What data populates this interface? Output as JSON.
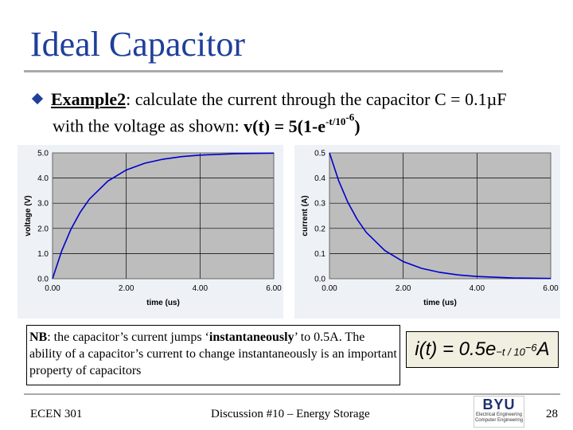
{
  "slide": {
    "title": "Ideal Capacitor",
    "bullet": {
      "label": "Example2",
      "colon": ":",
      "line1_rest": " calculate the current through the capacitor C = 0.1µF",
      "line2_prefix": "with the voltage as shown: ",
      "formula_main": "v(t) = 5(1-e",
      "formula_exp": "-t/10",
      "formula_exp2": "-6",
      "formula_close": ")"
    },
    "note": {
      "nb": "NB",
      "part1": ": the capacitor’s current jumps ‘",
      "inst": "instantaneously",
      "part2": "’ to 0.5A. The ability of a capacitor’s current to change instantaneously is an important property of capacitors"
    },
    "formula_box": {
      "lhs": "i(t) = 0.5e",
      "exp": "−t / 10",
      "exp2": "−6",
      "unit": " A"
    },
    "footer": {
      "course": "ECEN 301",
      "topic": "Discussion #10 – Energy Storage",
      "page": "28",
      "logo_text": "BYU",
      "logo_sub1": "Electrical Engineering",
      "logo_sub2": "Computer Engineering"
    }
  },
  "colors": {
    "title": "#1f3f9a",
    "plot_bg": "#bdbdbd",
    "panel_bg": "#eef2f7",
    "curve": "#0000cc"
  },
  "chart_data": [
    {
      "type": "line",
      "ylabel": "voltage (V)",
      "xlabel": "time (us)",
      "xticks": [
        "0.00",
        "2.00",
        "4.00",
        "6.00"
      ],
      "yticks": [
        "0.0",
        "1.0",
        "2.0",
        "3.0",
        "4.0",
        "5.0"
      ],
      "xlim": [
        0,
        6
      ],
      "ylim": [
        0,
        5
      ],
      "grid": true,
      "series": [
        {
          "x": [
            0,
            0.25,
            0.5,
            0.75,
            1,
            1.5,
            2,
            2.5,
            3,
            3.5,
            4,
            5,
            6
          ],
          "y": [
            0,
            1.11,
            1.97,
            2.64,
            3.16,
            3.88,
            4.32,
            4.59,
            4.75,
            4.85,
            4.91,
            4.97,
            4.99
          ]
        }
      ]
    },
    {
      "type": "line",
      "ylabel": "current (A)",
      "xlabel": "time (us)",
      "xticks": [
        "0.00",
        "2.00",
        "4.00",
        "6.00"
      ],
      "yticks": [
        "0.0",
        "0.1",
        "0.2",
        "0.3",
        "0.4",
        "0.5"
      ],
      "xlim": [
        0,
        6
      ],
      "ylim": [
        0,
        0.5
      ],
      "grid": true,
      "series": [
        {
          "x": [
            0,
            0.25,
            0.5,
            0.75,
            1,
            1.5,
            2,
            2.5,
            3,
            3.5,
            4,
            5,
            6
          ],
          "y": [
            0.5,
            0.389,
            0.303,
            0.236,
            0.184,
            0.112,
            0.068,
            0.041,
            0.025,
            0.015,
            0.009,
            0.003,
            0.001
          ]
        }
      ]
    }
  ]
}
